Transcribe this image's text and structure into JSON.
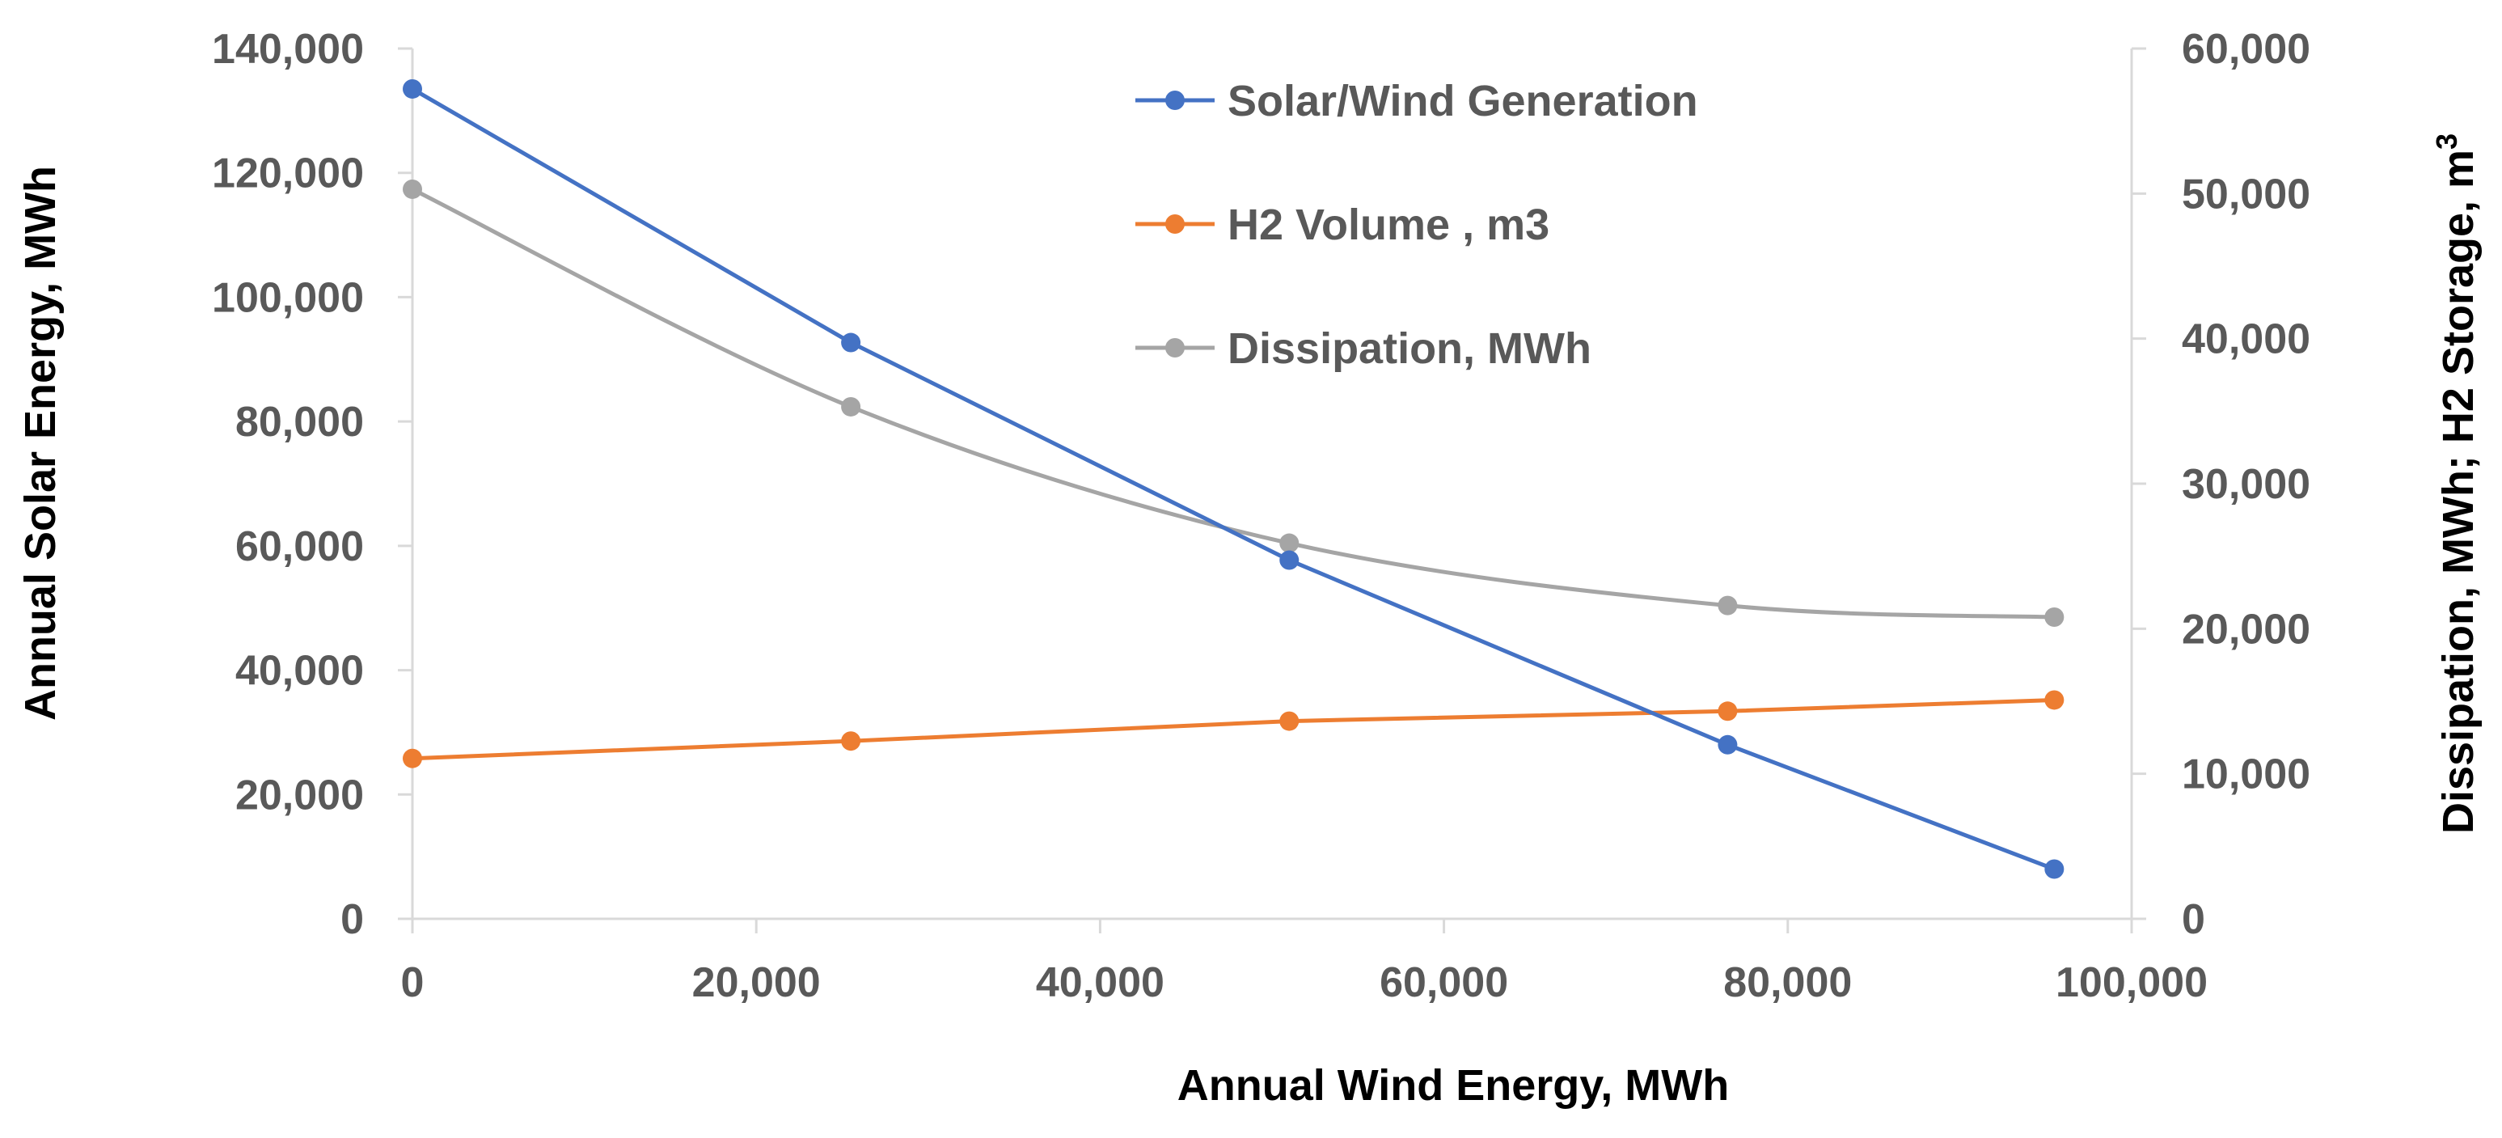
{
  "chart_data": {
    "type": "line",
    "title": "",
    "xlabel": "Annual Wind Energy, MWh",
    "ylabel": "Annual Solar Energy, MWh",
    "y2label_main": "Dissipation, MWh; H2 Storage, m",
    "y2label_superscript": "3",
    "xlim": [
      0,
      100000
    ],
    "ylim": [
      0,
      140000
    ],
    "y2lim": [
      0,
      60000
    ],
    "x_ticks": [
      "0",
      "20,000",
      "40,000",
      "60,000",
      "80,000",
      "100,000"
    ],
    "y_ticks": [
      "0",
      "20,000",
      "40,000",
      "60,000",
      "80,000",
      "100,000",
      "120,000",
      "140,000"
    ],
    "y2_ticks": [
      "0",
      "10,000",
      "20,000",
      "30,000",
      "40,000",
      "50,000",
      "60,000"
    ],
    "x": [
      0,
      25500,
      51000,
      76500,
      95500
    ],
    "grid": false,
    "legend_position": "top-center",
    "series": [
      {
        "name": "Solar/Wind Generation",
        "axis": "left",
        "color": "#4472C4",
        "smooth": false,
        "values": [
          133500,
          92700,
          57700,
          28000,
          8000
        ]
      },
      {
        "name": "H2 Volume , m3",
        "axis": "left",
        "color": "#ED7D31",
        "smooth": false,
        "values": [
          25800,
          28600,
          31800,
          33400,
          35200
        ]
      },
      {
        "name": "Dissipation, MWh",
        "axis": "right",
        "color": "#A5A5A5",
        "smooth": true,
        "values": [
          50300,
          35300,
          25900,
          21600,
          20800
        ]
      }
    ]
  }
}
